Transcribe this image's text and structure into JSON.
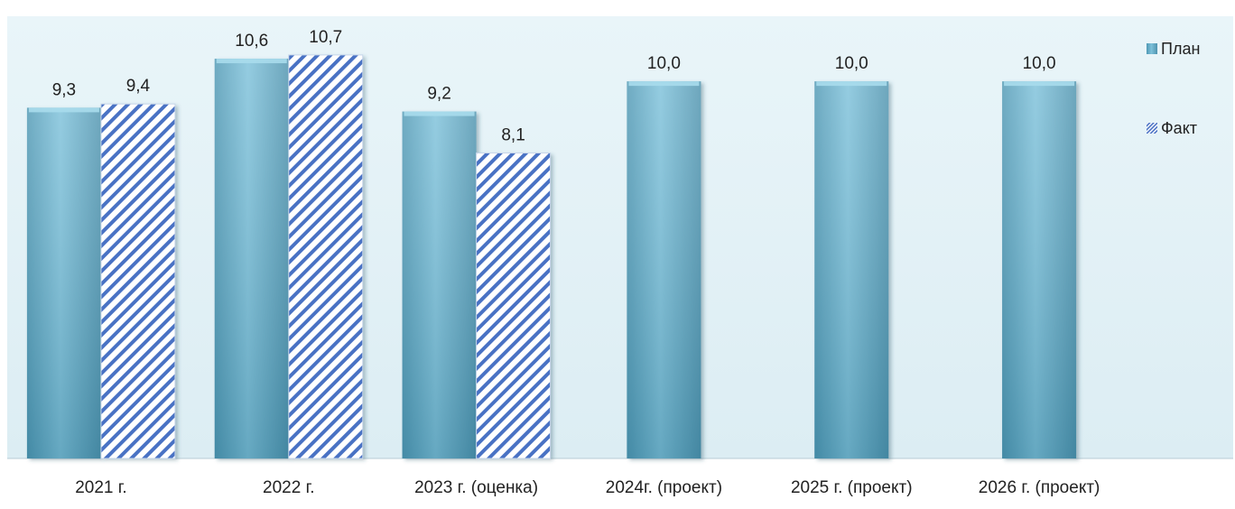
{
  "chart_data": {
    "type": "bar",
    "title": "",
    "xlabel": "",
    "ylabel": "",
    "categories": [
      "2021 г.",
      "2022 г.",
      "2023 г. (оценка)",
      "2024г. (проект)",
      "2025 г. (проект)",
      "2026 г. (проект)"
    ],
    "series": [
      {
        "name": "План",
        "values": [
          9.3,
          10.6,
          9.2,
          10.0,
          10.0,
          10.0
        ],
        "labels": [
          "9,3",
          "10,6",
          "9,2",
          "10,0",
          "10,0",
          "10,0"
        ],
        "color": "#5aaecb",
        "pattern": "solid"
      },
      {
        "name": "Факт",
        "values": [
          9.4,
          10.7,
          8.1,
          null,
          null,
          null
        ],
        "labels": [
          "9,4",
          "10,7",
          "8,1",
          "",
          "",
          ""
        ],
        "color": "#4a72c4",
        "pattern": "diagonal-hatch"
      }
    ],
    "ylim": [
      0,
      11.2
    ],
    "grid": false,
    "legend_position": "right",
    "plot_background": "#e6f3f8",
    "category_band_background": "#ffffff"
  }
}
